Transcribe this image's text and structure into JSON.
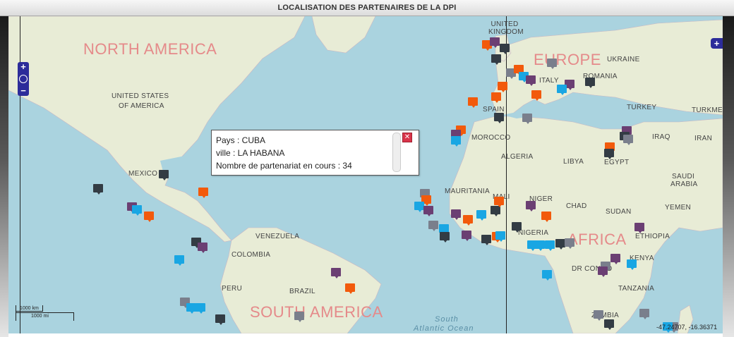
{
  "window": {
    "title": "LOCALISATION DES PARTENAIRES DE LA DPI"
  },
  "map": {
    "regions": [
      "NORTH AMERICA",
      "EUROPE",
      "AFRICA",
      "SOUTH AMERICA"
    ],
    "countries": [
      "UNITED KINGDOM",
      "UKRAINE",
      "UNITED STATES",
      "OF AMERICA",
      "SPAIN",
      "ITALY",
      "ROMANIA",
      "TURKEY",
      "TURKMENI",
      "MOROCCO",
      "ALGERIA",
      "LIBYA",
      "EGYPT",
      "IRAQ",
      "IRAN",
      "SAUDI",
      "ARABIA",
      "YEMEN",
      "MEXICO",
      "MAURITANIA",
      "MALI",
      "NIGER",
      "CHAD",
      "SUDAN",
      "ETHIOPIA",
      "NIGERIA",
      "VENEZUELA",
      "COLOMBIA",
      "KENYA",
      "DR CONGO",
      "BRAZIL",
      "PERU",
      "TANZANIA",
      "ZAMBIA"
    ],
    "oceans": [
      "South",
      "Atlantic Ocean"
    ],
    "colors": {
      "orange": "#f25a0c",
      "purple": "#6b3f73",
      "dark": "#333c44",
      "blue": "#19a6e3",
      "gray": "#7a7f8c",
      "water": "#aad3df",
      "land": "#e8ecd6"
    },
    "markers": [
      {
        "lat": 23.1,
        "lon": -82.4,
        "c": "dark"
      },
      {
        "lat": 19.4,
        "lon": -99.1,
        "c": "dark"
      },
      {
        "lat": 14.6,
        "lon": -90.5,
        "c": "purple"
      },
      {
        "lat": 13.7,
        "lon": -89.2,
        "c": "blue"
      },
      {
        "lat": 12.1,
        "lon": -86.3,
        "c": "orange"
      },
      {
        "lat": 18.5,
        "lon": -72.3,
        "c": "orange"
      },
      {
        "lat": 4.7,
        "lon": -74.1,
        "c": "dark"
      },
      {
        "lat": 3.4,
        "lon": -72.5,
        "c": "purple"
      },
      {
        "lat": -0.2,
        "lon": -78.5,
        "c": "blue"
      },
      {
        "lat": -12.0,
        "lon": -77.0,
        "c": "gray"
      },
      {
        "lat": -13.5,
        "lon": -75.5,
        "c": "blue"
      },
      {
        "lat": -13.5,
        "lon": -73.0,
        "c": "blue"
      },
      {
        "lat": -16.5,
        "lon": -68.1,
        "c": "dark"
      },
      {
        "lat": -15.8,
        "lon": -47.9,
        "c": "gray"
      },
      {
        "lat": -3.7,
        "lon": -38.5,
        "c": "purple"
      },
      {
        "lat": -8.0,
        "lon": -34.9,
        "c": "orange"
      },
      {
        "lat": 51.5,
        "lon": -0.1,
        "c": "orange"
      },
      {
        "lat": 52.0,
        "lon": 2.0,
        "c": "purple"
      },
      {
        "lat": 50.8,
        "lon": 4.4,
        "c": "dark"
      },
      {
        "lat": 48.9,
        "lon": 2.3,
        "c": "dark"
      },
      {
        "lat": 46.2,
        "lon": 6.1,
        "c": "gray"
      },
      {
        "lat": 47.0,
        "lon": 8.0,
        "c": "orange"
      },
      {
        "lat": 48.2,
        "lon": 16.4,
        "c": "gray"
      },
      {
        "lat": 45.5,
        "lon": 9.2,
        "c": "blue"
      },
      {
        "lat": 44.8,
        "lon": 11.0,
        "c": "purple"
      },
      {
        "lat": 43.6,
        "lon": 3.9,
        "c": "orange"
      },
      {
        "lat": 41.4,
        "lon": 2.2,
        "c": "orange"
      },
      {
        "lat": 41.9,
        "lon": 12.5,
        "c": "orange"
      },
      {
        "lat": 44.4,
        "lon": 26.1,
        "c": "dark"
      },
      {
        "lat": 44.0,
        "lon": 21.0,
        "c": "purple"
      },
      {
        "lat": 43.0,
        "lon": 19.0,
        "c": "blue"
      },
      {
        "lat": 40.4,
        "lon": -3.7,
        "c": "orange"
      },
      {
        "lat": 37.0,
        "lon": 3.0,
        "c": "dark"
      },
      {
        "lat": 36.8,
        "lon": 10.2,
        "c": "gray"
      },
      {
        "lat": 34.0,
        "lon": -6.8,
        "c": "orange"
      },
      {
        "lat": 33.0,
        "lon": -8.0,
        "c": "purple"
      },
      {
        "lat": 31.6,
        "lon": -8.0,
        "c": "blue"
      },
      {
        "lat": 33.9,
        "lon": 35.5,
        "c": "purple"
      },
      {
        "lat": 32.5,
        "lon": 35.0,
        "c": "dark"
      },
      {
        "lat": 31.9,
        "lon": 35.9,
        "c": "gray"
      },
      {
        "lat": 30.0,
        "lon": 31.2,
        "c": "orange"
      },
      {
        "lat": 28.5,
        "lon": 31.0,
        "c": "dark"
      },
      {
        "lat": 18.1,
        "lon": -15.9,
        "c": "gray"
      },
      {
        "lat": 16.5,
        "lon": -15.5,
        "c": "orange"
      },
      {
        "lat": 14.7,
        "lon": -17.4,
        "c": "blue"
      },
      {
        "lat": 13.5,
        "lon": -15.0,
        "c": "purple"
      },
      {
        "lat": 12.6,
        "lon": -8.0,
        "c": "purple"
      },
      {
        "lat": 12.4,
        "lon": -1.5,
        "c": "blue"
      },
      {
        "lat": 13.5,
        "lon": 2.1,
        "c": "dark"
      },
      {
        "lat": 16.0,
        "lon": 3.0,
        "c": "orange"
      },
      {
        "lat": 15.0,
        "lon": 11.0,
        "c": "purple"
      },
      {
        "lat": 11.0,
        "lon": -5.0,
        "c": "orange"
      },
      {
        "lat": 9.5,
        "lon": -13.7,
        "c": "gray"
      },
      {
        "lat": 8.5,
        "lon": -11.0,
        "c": "blue"
      },
      {
        "lat": 6.3,
        "lon": -10.8,
        "c": "dark"
      },
      {
        "lat": 6.8,
        "lon": -5.3,
        "c": "purple"
      },
      {
        "lat": 5.6,
        "lon": -0.2,
        "c": "dark"
      },
      {
        "lat": 6.4,
        "lon": 2.4,
        "c": "orange"
      },
      {
        "lat": 9.1,
        "lon": 7.5,
        "c": "dark"
      },
      {
        "lat": 6.5,
        "lon": 3.4,
        "c": "blue"
      },
      {
        "lat": 12.1,
        "lon": 15.0,
        "c": "orange"
      },
      {
        "lat": 4.4,
        "lon": 18.6,
        "c": "dark"
      },
      {
        "lat": 3.9,
        "lon": 11.5,
        "c": "blue"
      },
      {
        "lat": 4.0,
        "lon": 13.5,
        "c": "blue"
      },
      {
        "lat": 4.0,
        "lon": 16.0,
        "c": "blue"
      },
      {
        "lat": 4.5,
        "lon": 21.0,
        "c": "gray"
      },
      {
        "lat": 9.0,
        "lon": 38.7,
        "c": "purple"
      },
      {
        "lat": -1.3,
        "lon": 36.8,
        "c": "blue"
      },
      {
        "lat": 0.3,
        "lon": 32.6,
        "c": "purple"
      },
      {
        "lat": -1.9,
        "lon": 30.1,
        "c": "gray"
      },
      {
        "lat": -3.4,
        "lon": 29.4,
        "c": "purple"
      },
      {
        "lat": -4.3,
        "lon": 15.3,
        "c": "blue"
      },
      {
        "lat": -15.4,
        "lon": 28.3,
        "c": "gray"
      },
      {
        "lat": -17.8,
        "lon": 31.0,
        "c": "dark"
      },
      {
        "lat": -15.0,
        "lon": 40.0,
        "c": "gray"
      },
      {
        "lat": -18.9,
        "lon": 47.5,
        "c": "gray"
      },
      {
        "lat": -19.5,
        "lon": 46.0,
        "c": "blue"
      }
    ]
  },
  "popup": {
    "pays": "Pays : CUBA",
    "ville": "ville : LA HABANA",
    "count": "Nombre de partenariat en cours : 34",
    "close_icon": "close-icon"
  },
  "controls": {
    "zoom_in": "+",
    "zoom_out": "−",
    "layers": "+"
  },
  "scale": {
    "km": "1000 km",
    "mi": "1000 mi"
  },
  "coordinates": "-47.24707, -16.36371"
}
